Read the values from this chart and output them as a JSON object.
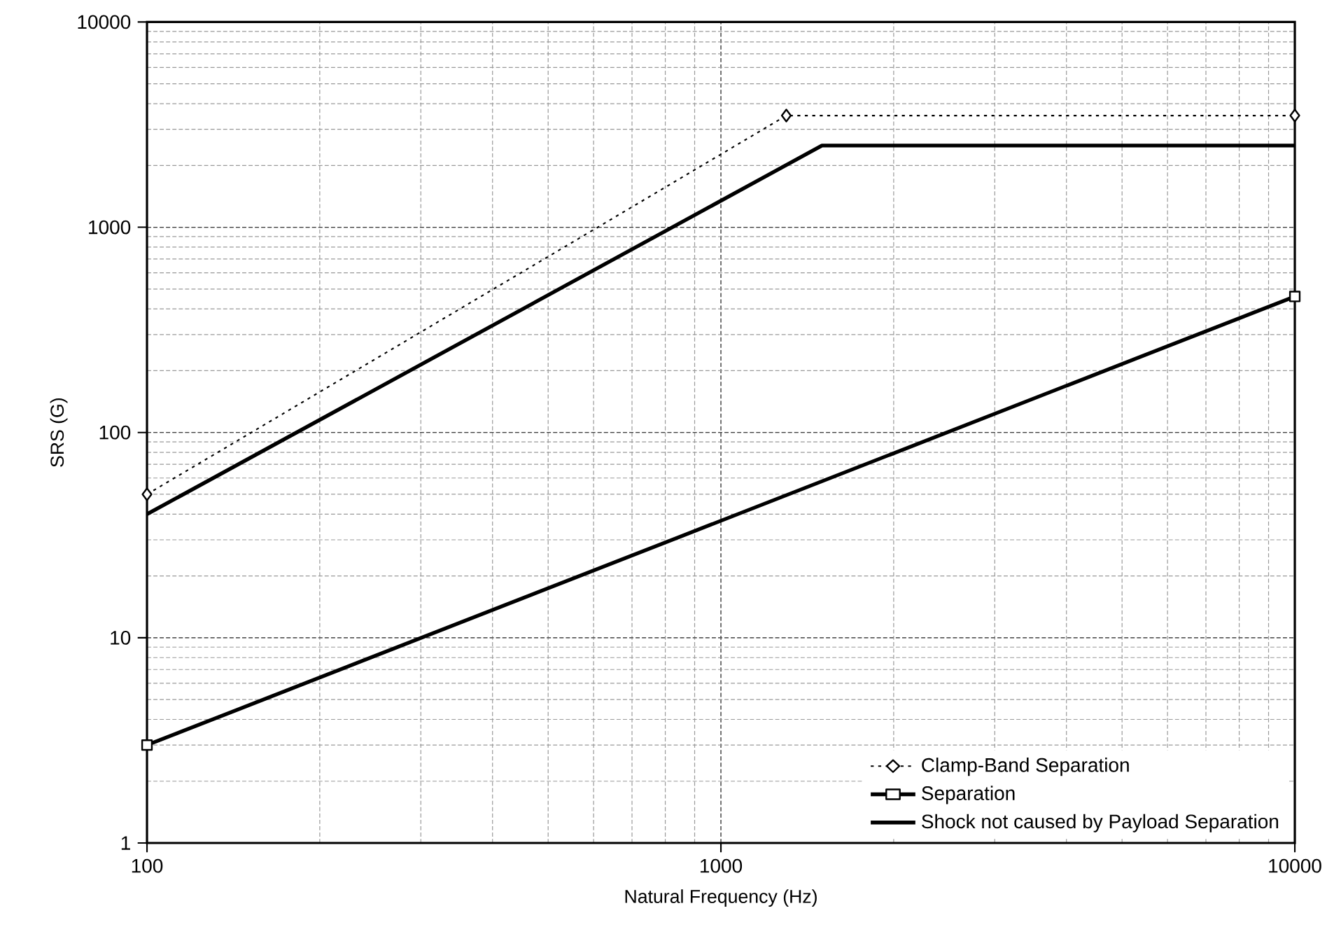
{
  "chart_data": {
    "type": "line",
    "xlabel": "Natural Frequency (Hz)",
    "ylabel": "SRS (G)",
    "log": "xy",
    "xlim": [
      100,
      10000
    ],
    "ylim": [
      1,
      10000
    ],
    "xticks": [
      100,
      1000,
      10000
    ],
    "yticks": [
      1,
      10,
      100,
      1000,
      10000
    ],
    "grid": true,
    "legend": "bottom right",
    "series": [
      {
        "name": "Clamp-Band Separation",
        "color": "#000000",
        "marker": "diamond",
        "line_style": "dotted",
        "x": [
          100,
          1300,
          10000
        ],
        "values": [
          50,
          3500,
          3500
        ]
      },
      {
        "name": "Separation",
        "color": "#000000",
        "marker": "square",
        "line_style": "solid",
        "x": [
          100,
          10000
        ],
        "values": [
          3,
          460
        ]
      },
      {
        "name": "Shock not caused by Payload Separation",
        "color": "#000000",
        "marker": "none",
        "line_style": "solid",
        "x": [
          100,
          1500,
          10000
        ],
        "values": [
          40,
          2500,
          2500
        ]
      }
    ]
  }
}
